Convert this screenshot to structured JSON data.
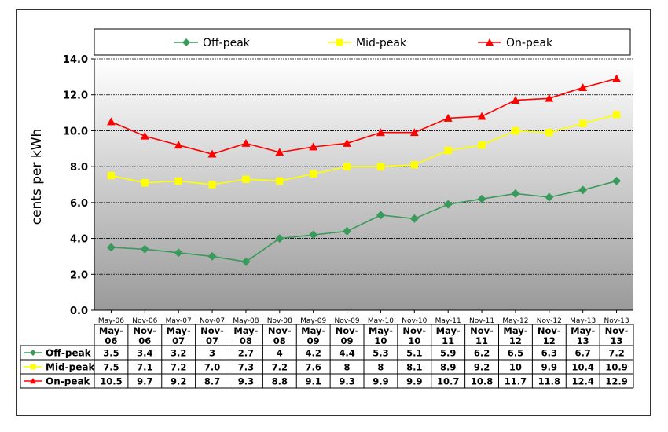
{
  "chart_data": {
    "type": "line",
    "title": "",
    "xlabel": "",
    "ylabel": "cents per kWh",
    "ylim": [
      0,
      14
    ],
    "yticks": [
      0,
      2,
      4,
      6,
      8,
      10,
      12,
      14
    ],
    "ytick_labels": [
      "0.0",
      "2.0",
      "4.0",
      "6.0",
      "8.0",
      "10.0",
      "12.0",
      "14.0"
    ],
    "grid": true,
    "legend_position": "top",
    "categories": [
      "May-06",
      "Nov-06",
      "May-07",
      "Nov-07",
      "May-08",
      "Nov-08",
      "May-09",
      "Nov-09",
      "May-10",
      "Nov-10",
      "May-11",
      "Nov-11",
      "May-12",
      "Nov-12",
      "May-13",
      "Nov-13"
    ],
    "table_header": [
      [
        "May-",
        "06"
      ],
      [
        "Nov-",
        "06"
      ],
      [
        "May-",
        "07"
      ],
      [
        "Nov-",
        "07"
      ],
      [
        "May-",
        "08"
      ],
      [
        "Nov-",
        "08"
      ],
      [
        "May-",
        "09"
      ],
      [
        "Nov-",
        "09"
      ],
      [
        "May-",
        "10"
      ],
      [
        "Nov-",
        "10"
      ],
      [
        "May-",
        "11"
      ],
      [
        "Nov-",
        "11"
      ],
      [
        "May-",
        "12"
      ],
      [
        "Nov-",
        "12"
      ],
      [
        "May-",
        "13"
      ],
      [
        "Nov-",
        "13"
      ]
    ],
    "series": [
      {
        "name": "Off-peak",
        "color": "#3a9a5c",
        "marker": "diamond",
        "values": [
          3.5,
          3.4,
          3.2,
          3.0,
          2.7,
          4.0,
          4.2,
          4.4,
          5.3,
          5.1,
          5.9,
          6.2,
          6.5,
          6.3,
          6.7,
          7.2
        ],
        "value_labels": [
          "3.5",
          "3.4",
          "3.2",
          "3",
          "2.7",
          "4",
          "4.2",
          "4.4",
          "5.3",
          "5.1",
          "5.9",
          "6.2",
          "6.5",
          "6.3",
          "6.7",
          "7.2"
        ]
      },
      {
        "name": "Mid-peak",
        "color": "#ffff00",
        "marker": "square",
        "values": [
          7.5,
          7.1,
          7.2,
          7.0,
          7.3,
          7.2,
          7.6,
          8.0,
          8.0,
          8.1,
          8.9,
          9.2,
          10.0,
          9.9,
          10.4,
          10.9
        ],
        "value_labels": [
          "7.5",
          "7.1",
          "7.2",
          "7.0",
          "7.3",
          "7.2",
          "7.6",
          "8",
          "8",
          "8.1",
          "8.9",
          "9.2",
          "10",
          "9.9",
          "10.4",
          "10.9"
        ]
      },
      {
        "name": "On-peak",
        "color": "#ff0000",
        "marker": "triangle",
        "values": [
          10.5,
          9.7,
          9.2,
          8.7,
          9.3,
          8.8,
          9.1,
          9.3,
          9.9,
          9.9,
          10.7,
          10.8,
          11.7,
          11.8,
          12.4,
          12.9
        ],
        "value_labels": [
          "10.5",
          "9.7",
          "9.2",
          "8.7",
          "9.3",
          "8.8",
          "9.1",
          "9.3",
          "9.9",
          "9.9",
          "10.7",
          "10.8",
          "11.7",
          "11.8",
          "12.4",
          "12.9"
        ]
      }
    ]
  }
}
